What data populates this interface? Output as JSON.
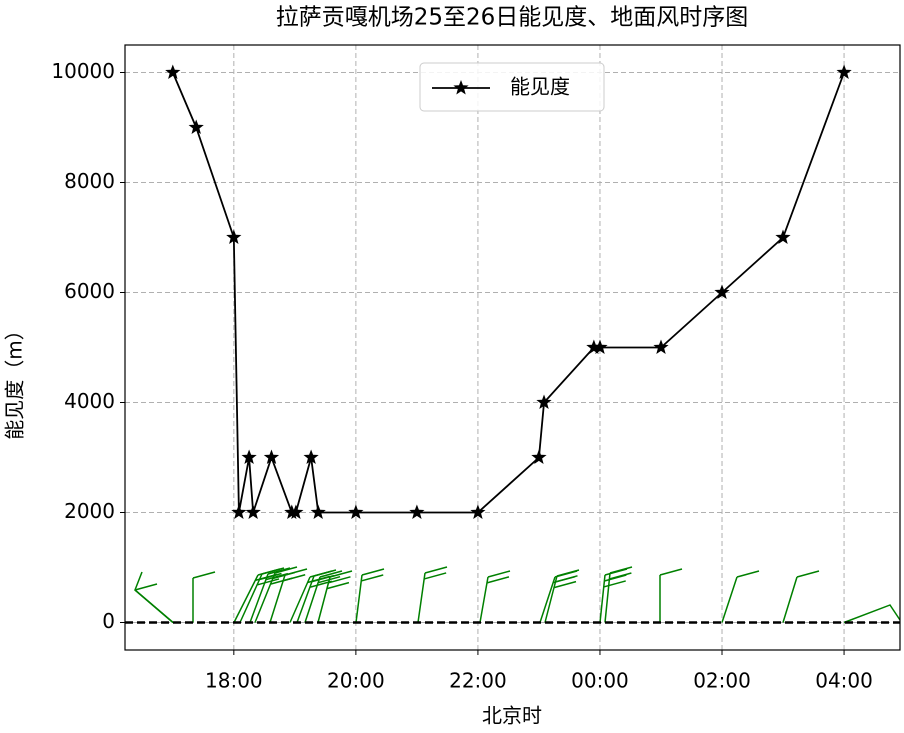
{
  "chart_data": {
    "type": "line",
    "title": "拉萨贡嘎机场25至26日能见度、地面风时序图",
    "x_label": "北京时",
    "y_label": "能见度（m）",
    "x": [
      "17:00",
      "17:23",
      "18:00",
      "18:05",
      "18:15",
      "18:19",
      "18:37",
      "18:57",
      "19:01",
      "19:16",
      "19:23",
      "20:00",
      "21:00",
      "22:00",
      "23:00",
      "23:05",
      "23:54",
      "00:00",
      "01:00",
      "02:00",
      "03:00",
      "04:00"
    ],
    "series": [
      {
        "name": "能见度",
        "color": "#000000",
        "values": [
          10000,
          9000,
          7000,
          2000,
          3000,
          2000,
          3000,
          2000,
          2000,
          3000,
          2000,
          2000,
          2000,
          2000,
          3000,
          4000,
          5000,
          5000,
          5000,
          6000,
          7000,
          10000
        ]
      }
    ],
    "xlim": [
      "16:13",
      "04:55"
    ],
    "xticks": [
      "18:00",
      "20:00",
      "22:00",
      "00:00",
      "02:00",
      "04:00"
    ],
    "ylim": [
      -500,
      10500
    ],
    "yticks": [
      0,
      2000,
      4000,
      6000,
      8000,
      10000
    ],
    "grid": true,
    "legend": "upper center",
    "wind_color": "#008000"
  }
}
